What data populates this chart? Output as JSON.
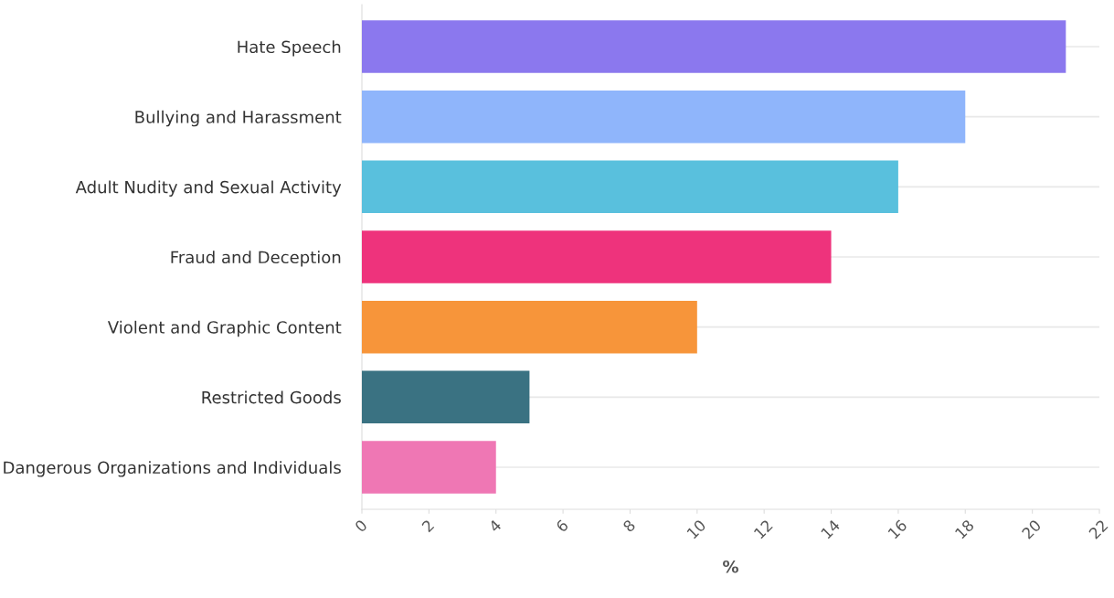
{
  "chart_data": {
    "type": "bar",
    "orientation": "horizontal",
    "xlabel": "%",
    "categories": [
      "Hate Speech",
      "Bullying and Harassment",
      "Adult Nudity and Sexual Activity",
      "Fraud and Deception",
      "Violent and Graphic Content",
      "Restricted Goods",
      "Dangerous Organizations and Individuals"
    ],
    "values": [
      21,
      18,
      16,
      14,
      10,
      5,
      4
    ],
    "colors": [
      "#8b78ee",
      "#8fb5fb",
      "#59c0dd",
      "#ee337c",
      "#f7953a",
      "#3a7282",
      "#ef77b4"
    ],
    "xlim": [
      0,
      22
    ],
    "xticks": [
      0,
      2,
      4,
      6,
      8,
      10,
      12,
      14,
      16,
      18,
      20,
      22
    ],
    "grid": "y",
    "legend": false
  }
}
